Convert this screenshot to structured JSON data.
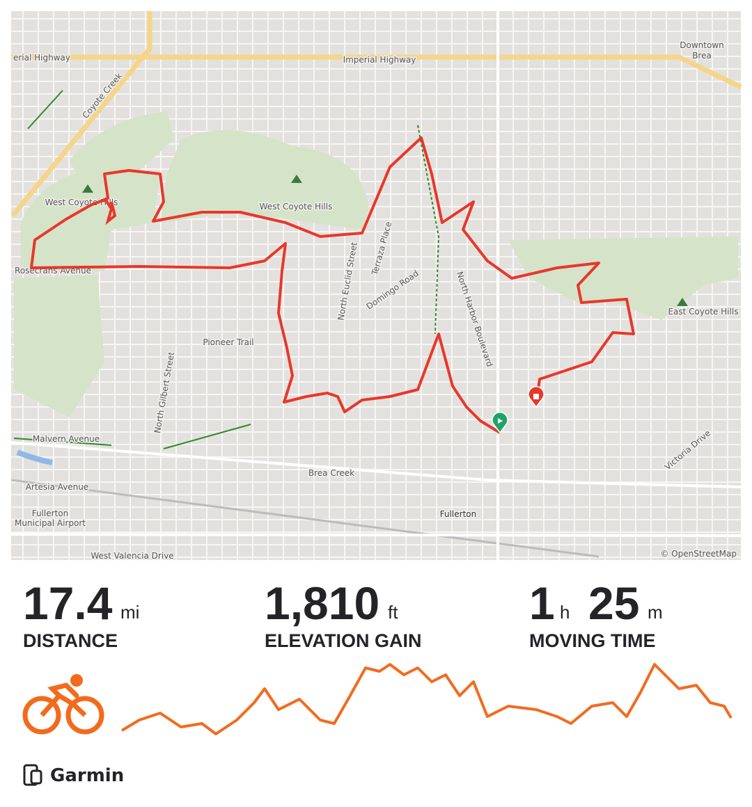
{
  "map": {
    "labels": [
      "erial Highway",
      "Imperial Highway",
      "Coyote Creek",
      "Downtown",
      "Brea",
      "West Coyote Hills",
      "West Coyote Hills",
      "North Euclid Street",
      "Terraza Place",
      "Domingo Road",
      "North Harbor Boulevard",
      "East Coyote Hills",
      "Rosecrans Avenue",
      "Pioneer Trail",
      "North Gilbert Street",
      "Malvern Avenue",
      "Brea Creek",
      "Artesia Avenue",
      "Fullerton",
      "Municipal Airport",
      "Fullerton",
      "West Valencia Drive",
      "Victoria Drive"
    ],
    "attribution": "© OpenStreetMap"
  },
  "stats": [
    {
      "value": "17.4",
      "unit": "mi",
      "label": "DISTANCE"
    },
    {
      "value": "1,810",
      "unit": "ft",
      "label": "ELEVATION GAIN"
    },
    {
      "hours": "1",
      "hours_unit": "h",
      "minutes": "25",
      "minutes_unit": "m",
      "label": "MOVING TIME"
    }
  ],
  "source": "Garmin"
}
